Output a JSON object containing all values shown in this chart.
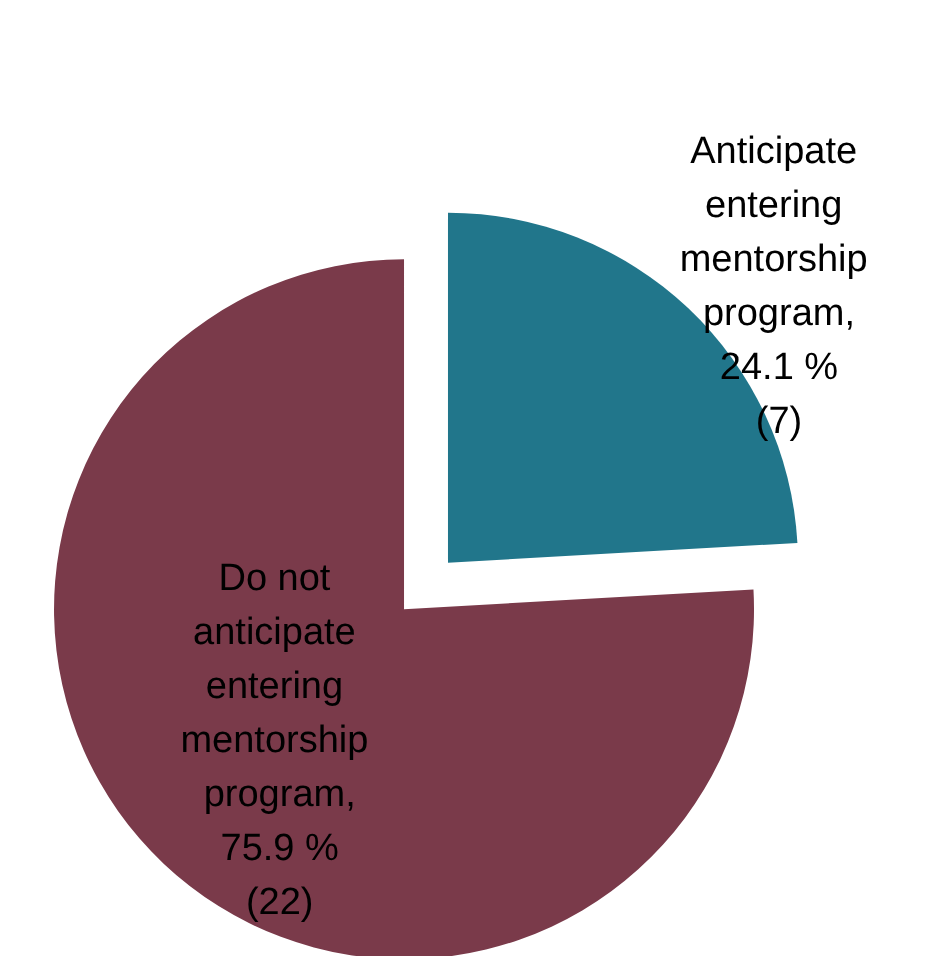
{
  "chart_data": {
    "type": "pie",
    "categories": [
      "Anticipate entering mentorship program",
      "Do not anticipate entering mentorship program"
    ],
    "values": [
      24.1,
      75.9
    ],
    "value_labels": [
      ", 24.1 % (7)",
      ", 75.9 % (22)"
    ],
    "colors": [
      "#21768b",
      "#7a3a4a"
    ],
    "legend": false
  }
}
